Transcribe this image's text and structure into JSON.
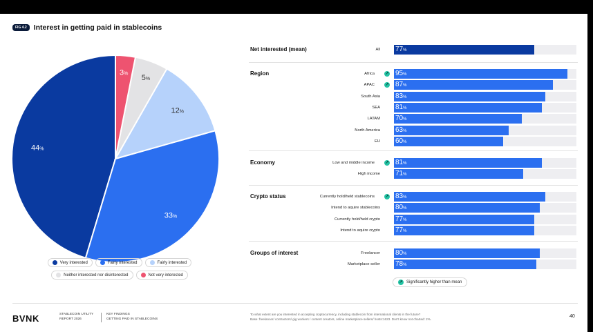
{
  "figure": {
    "tag": "FIG 4.2",
    "title": "Interest in getting paid in stablecoins"
  },
  "colors": {
    "very_interested": "#0a3aa0",
    "fairly_interested": "#2b6ff0",
    "fairly_interested_light": "#b6d2fb",
    "neither": "#e3e3e5",
    "not_very": "#ee5370",
    "bar_fill": "#2b6ff0",
    "bar_mean": "#0a3aa0",
    "significance": "#22c3a4"
  },
  "chart_data": [
    {
      "type": "pie",
      "title": "Interest in getting paid in stablecoins",
      "slices": [
        {
          "label": "Very interested",
          "value": 44,
          "display": "44",
          "unit": "%",
          "color_key": "very_interested"
        },
        {
          "label": "Fairly interested",
          "value": 33,
          "display": "33",
          "unit": "%",
          "color_key": "fairly_interested"
        },
        {
          "label": "Fairly interested",
          "value": 12,
          "display": "12",
          "unit": "%",
          "color_key": "fairly_interested_light"
        },
        {
          "label": "Neither interested nor disinterested",
          "value": 5,
          "display": "5",
          "unit": "%",
          "color_key": "neither"
        },
        {
          "label": "Not very interested",
          "value": 3,
          "display": "3",
          "unit": "%",
          "color_key": "not_very"
        }
      ]
    },
    {
      "type": "bar",
      "orientation": "horizontal",
      "xlim": [
        0,
        100
      ],
      "unit": "%",
      "groups": [
        {
          "title": "Net interested (mean)",
          "rows": [
            {
              "label": "All",
              "value": 77,
              "display": "77",
              "significant": false,
              "mean": true
            }
          ]
        },
        {
          "title": "Region",
          "rows": [
            {
              "label": "Africa",
              "value": 95,
              "display": "95",
              "significant": true
            },
            {
              "label": "APAC",
              "value": 87,
              "display": "87",
              "significant": true
            },
            {
              "label": "South Asia",
              "value": 83,
              "display": "83",
              "significant": false
            },
            {
              "label": "SEA",
              "value": 81,
              "display": "81",
              "significant": false
            },
            {
              "label": "LATAM",
              "value": 70,
              "display": "70",
              "significant": false
            },
            {
              "label": "North America",
              "value": 63,
              "display": "63",
              "significant": false
            },
            {
              "label": "EU",
              "value": 60,
              "display": "60",
              "significant": false
            }
          ]
        },
        {
          "title": "Economy",
          "rows": [
            {
              "label": "Low and middle income",
              "value": 81,
              "display": "81",
              "significant": true
            },
            {
              "label": "High income",
              "value": 71,
              "display": "71",
              "significant": false
            }
          ]
        },
        {
          "title": "Crypto status",
          "rows": [
            {
              "label": "Currently hold/held stablecoins",
              "value": 83,
              "display": "83",
              "significant": true
            },
            {
              "label": "Intend to aquire stablecoins",
              "value": 80,
              "display": "80",
              "significant": false
            },
            {
              "label": "Currently hold/held crypto",
              "value": 77,
              "display": "77",
              "significant": false
            },
            {
              "label": "Intend to aquire crypto",
              "value": 77,
              "display": "77",
              "significant": false
            }
          ]
        },
        {
          "title": "Groups of interest",
          "rows": [
            {
              "label": "Freelancer",
              "value": 80,
              "display": "80",
              "significant": false
            },
            {
              "label": "Marketplace seller",
              "value": 78,
              "display": "78",
              "significant": false
            }
          ]
        }
      ]
    }
  ],
  "legend": {
    "items": [
      {
        "label": "Very interested",
        "color_key": "very_interested"
      },
      {
        "label": "Fairly interested",
        "color_key": "fairly_interested"
      },
      {
        "label": "Fairly interested",
        "color_key": "fairly_interested_light"
      },
      {
        "label": "Neither interested nor disinterested",
        "color_key": "neither"
      },
      {
        "label": "Not very interested",
        "color_key": "not_very"
      }
    ],
    "significance_label": "Significantly higher than mean"
  },
  "footer": {
    "brand": "BVNK",
    "report_line1": "STABLECOIN UTILITY",
    "report_line2": "REPORT 2026",
    "section_line1": "KEY FINDINGS",
    "section_line2": "GETTING PAID IN STABLECOINS",
    "question": "To what extent are you interested in accepting cryptocurrency, including stablecoin from international clients in the future?",
    "base": "Base: freelancer/ contractors/ gig workers / content creators, online marketplace sellers/ hosts:1623. Don't know not charted: 2%.",
    "page": "40"
  }
}
